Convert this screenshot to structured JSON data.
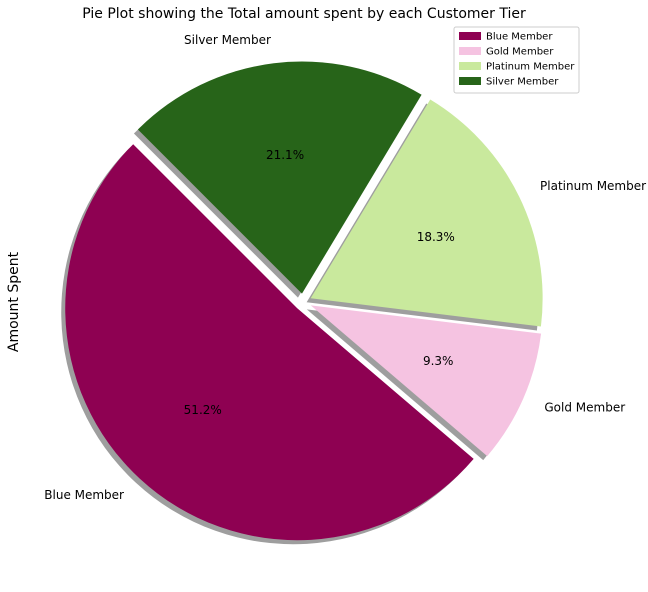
{
  "chart_data": {
    "type": "pie",
    "title": "Pie Plot showing the Total amount spent by each Customer Tier",
    "ylabel": "Amount Spent",
    "categories": [
      "Blue Member",
      "Gold Member",
      "Platinum Member",
      "Silver Member"
    ],
    "values": [
      51.2,
      9.3,
      18.3,
      21.1
    ],
    "percent_labels": [
      "51.2%",
      "9.3%",
      "18.3%",
      "21.1%"
    ],
    "colors": [
      "#8e0152",
      "#f5c3e1",
      "#c9e99d",
      "#276419"
    ],
    "exploded": true,
    "shadow": true,
    "legend_position": "top-right"
  }
}
